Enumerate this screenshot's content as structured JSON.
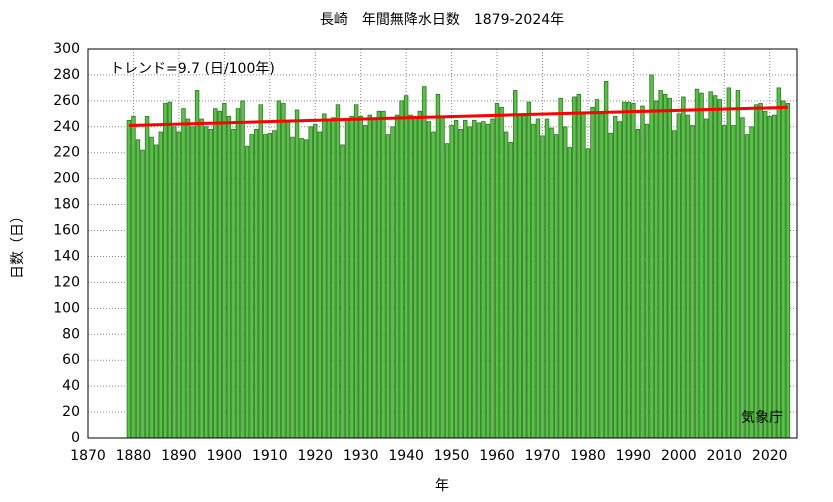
{
  "chart_data": {
    "type": "bar",
    "title": "長崎　年間無降水日数　1879-2024年",
    "xlabel": "年",
    "ylabel": "日数（日）",
    "annotations": [
      "トレンド=9.7 (日/100年)",
      "気象庁"
    ],
    "x": [
      1879,
      1880,
      1881,
      1882,
      1883,
      1884,
      1885,
      1886,
      1887,
      1888,
      1889,
      1890,
      1891,
      1892,
      1893,
      1894,
      1895,
      1896,
      1897,
      1898,
      1899,
      1900,
      1901,
      1902,
      1903,
      1904,
      1905,
      1906,
      1907,
      1908,
      1909,
      1910,
      1911,
      1912,
      1913,
      1914,
      1915,
      1916,
      1917,
      1918,
      1919,
      1920,
      1921,
      1922,
      1923,
      1924,
      1925,
      1926,
      1927,
      1928,
      1929,
      1930,
      1931,
      1932,
      1933,
      1934,
      1935,
      1936,
      1937,
      1938,
      1939,
      1940,
      1941,
      1942,
      1943,
      1944,
      1945,
      1946,
      1947,
      1948,
      1949,
      1950,
      1951,
      1952,
      1953,
      1954,
      1955,
      1956,
      1957,
      1958,
      1959,
      1960,
      1961,
      1962,
      1963,
      1964,
      1965,
      1966,
      1967,
      1968,
      1969,
      1970,
      1971,
      1972,
      1973,
      1974,
      1975,
      1976,
      1977,
      1978,
      1979,
      1980,
      1981,
      1982,
      1983,
      1984,
      1985,
      1986,
      1987,
      1988,
      1989,
      1990,
      1991,
      1992,
      1993,
      1994,
      1995,
      1996,
      1997,
      1998,
      1999,
      2000,
      2001,
      2002,
      2003,
      2004,
      2005,
      2006,
      2007,
      2008,
      2009,
      2010,
      2011,
      2012,
      2013,
      2014,
      2015,
      2016,
      2017,
      2018,
      2019,
      2020,
      2021,
      2022,
      2023,
      2024
    ],
    "values": [
      245,
      248,
      230,
      222,
      248,
      232,
      226,
      236,
      258,
      259,
      240,
      236,
      254,
      246,
      240,
      268,
      246,
      240,
      238,
      254,
      252,
      258,
      248,
      238,
      254,
      260,
      225,
      234,
      238,
      257,
      234,
      235,
      237,
      260,
      258,
      244,
      232,
      253,
      231,
      230,
      240,
      242,
      236,
      250,
      246,
      247,
      257,
      226,
      246,
      248,
      257,
      248,
      241,
      249,
      246,
      252,
      252,
      234,
      240,
      249,
      260,
      264,
      249,
      248,
      252,
      271,
      244,
      236,
      265,
      248,
      227,
      241,
      245,
      238,
      245,
      240,
      245,
      243,
      244,
      242,
      246,
      258,
      255,
      236,
      228,
      268,
      249,
      250,
      259,
      242,
      246,
      233,
      246,
      239,
      234,
      262,
      240,
      224,
      263,
      265,
      250,
      223,
      255,
      261,
      250,
      275,
      235,
      248,
      244,
      259,
      259,
      258,
      238,
      256,
      242,
      280,
      260,
      268,
      265,
      262,
      237,
      250,
      263,
      249,
      241,
      269,
      266,
      246,
      267,
      264,
      261,
      241,
      270,
      241,
      268,
      247,
      234,
      240,
      257,
      258,
      252,
      248,
      249,
      270,
      260,
      258
    ],
    "color": "#5cbf4c",
    "edgecolor": "#2a7a1e",
    "trend": {
      "x": [
        1879,
        2024
      ],
      "values": [
        241,
        255
      ],
      "color": "#ff0000"
    },
    "xlim": [
      1870,
      2026
    ],
    "xticks": [
      1870,
      1880,
      1890,
      1900,
      1910,
      1920,
      1930,
      1940,
      1950,
      1960,
      1970,
      1980,
      1990,
      2000,
      2010,
      2020
    ],
    "ylim": [
      0,
      300
    ],
    "yticks": [
      0,
      20,
      40,
      60,
      80,
      100,
      120,
      140,
      160,
      180,
      200,
      220,
      240,
      260,
      280,
      300
    ],
    "grid": true
  }
}
